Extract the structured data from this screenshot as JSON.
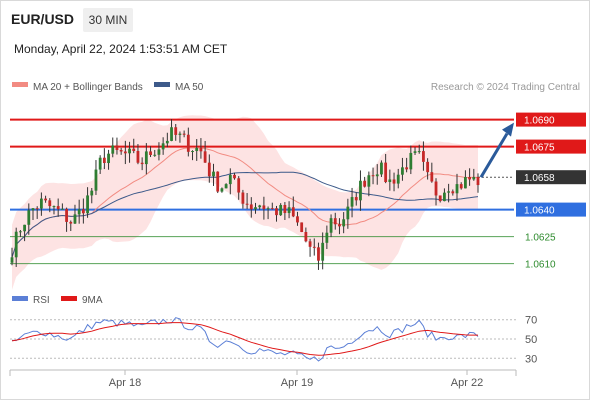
{
  "header": {
    "pair": "EUR/USD",
    "timeframe": "30 MIN",
    "datetime": "Monday, April 22, 2024 1:53:51 AM CET"
  },
  "source": "Research © 2024 Trading Central",
  "chart_data": [
    {
      "type": "candlestick",
      "legend": [
        {
          "name": "MA 20 + Bollinger Bands",
          "color": "#f28b82"
        },
        {
          "name": "MA 50",
          "color": "#3d5a8a"
        }
      ],
      "ylim": [
        1.0602,
        1.0702
      ],
      "x_ticks": [
        "Apr 18",
        "Apr 19",
        "Apr 22"
      ],
      "levels": [
        {
          "value": 1.069,
          "label": "1.0690",
          "kind": "resistance",
          "color": "#e01919"
        },
        {
          "value": 1.0675,
          "label": "1.0675",
          "kind": "resistance",
          "color": "#e01919"
        },
        {
          "value": 1.0658,
          "label": "1.0658",
          "kind": "current",
          "color": "#333333"
        },
        {
          "value": 1.064,
          "label": "1.0640",
          "kind": "pivot",
          "color": "#2f6fe0"
        },
        {
          "value": 1.0625,
          "label": "1.0625",
          "kind": "support",
          "color": "#2e8b2e"
        },
        {
          "value": 1.061,
          "label": "1.0610",
          "kind": "support",
          "color": "#2e8b2e"
        }
      ],
      "arrow": {
        "from": 1.0658,
        "to": 1.0685,
        "color": "#2a5a9a"
      },
      "close_path": [
        1.0618,
        1.0632,
        1.064,
        1.0644,
        1.0641,
        1.0638,
        1.0633,
        1.064,
        1.065,
        1.0668,
        1.0672,
        1.0671,
        1.067,
        1.0666,
        1.0672,
        1.0676,
        1.0682,
        1.068,
        1.0675,
        1.0673,
        1.066,
        1.0652,
        1.0658,
        1.0648,
        1.0642,
        1.0643,
        1.064,
        1.0639,
        1.0638,
        1.063,
        1.0618,
        1.0612,
        1.0635,
        1.0632,
        1.064,
        1.0652,
        1.066,
        1.0664,
        1.0655,
        1.066,
        1.0667,
        1.067,
        1.0656,
        1.0648,
        1.0654,
        1.0653,
        1.0657,
        1.0656
      ]
    },
    {
      "type": "line",
      "legend": [
        {
          "name": "RSI",
          "color": "#5b7fd6"
        },
        {
          "name": "9MA",
          "color": "#e01919"
        }
      ],
      "ylim": [
        22,
        78
      ],
      "y_ticks": [
        70,
        50,
        30
      ],
      "rsi": [
        45,
        52,
        56,
        58,
        55,
        52,
        50,
        58,
        64,
        68,
        67,
        66,
        65,
        62,
        66,
        68,
        70,
        67,
        62,
        60,
        48,
        44,
        50,
        42,
        38,
        39,
        36,
        34,
        35,
        32,
        28,
        30,
        42,
        40,
        46,
        55,
        60,
        62,
        55,
        58,
        64,
        67,
        55,
        50,
        53,
        52,
        54,
        54
      ],
      "ma9": [
        48,
        50,
        53,
        55,
        56,
        56,
        55,
        56,
        58,
        61,
        63,
        65,
        66,
        66,
        66,
        66,
        67,
        67,
        66,
        65,
        62,
        58,
        55,
        51,
        47,
        44,
        41,
        39,
        37,
        36,
        34,
        33,
        34,
        35,
        37,
        39,
        42,
        46,
        49,
        52,
        55,
        58,
        59,
        57,
        56,
        55,
        54,
        54
      ]
    }
  ]
}
